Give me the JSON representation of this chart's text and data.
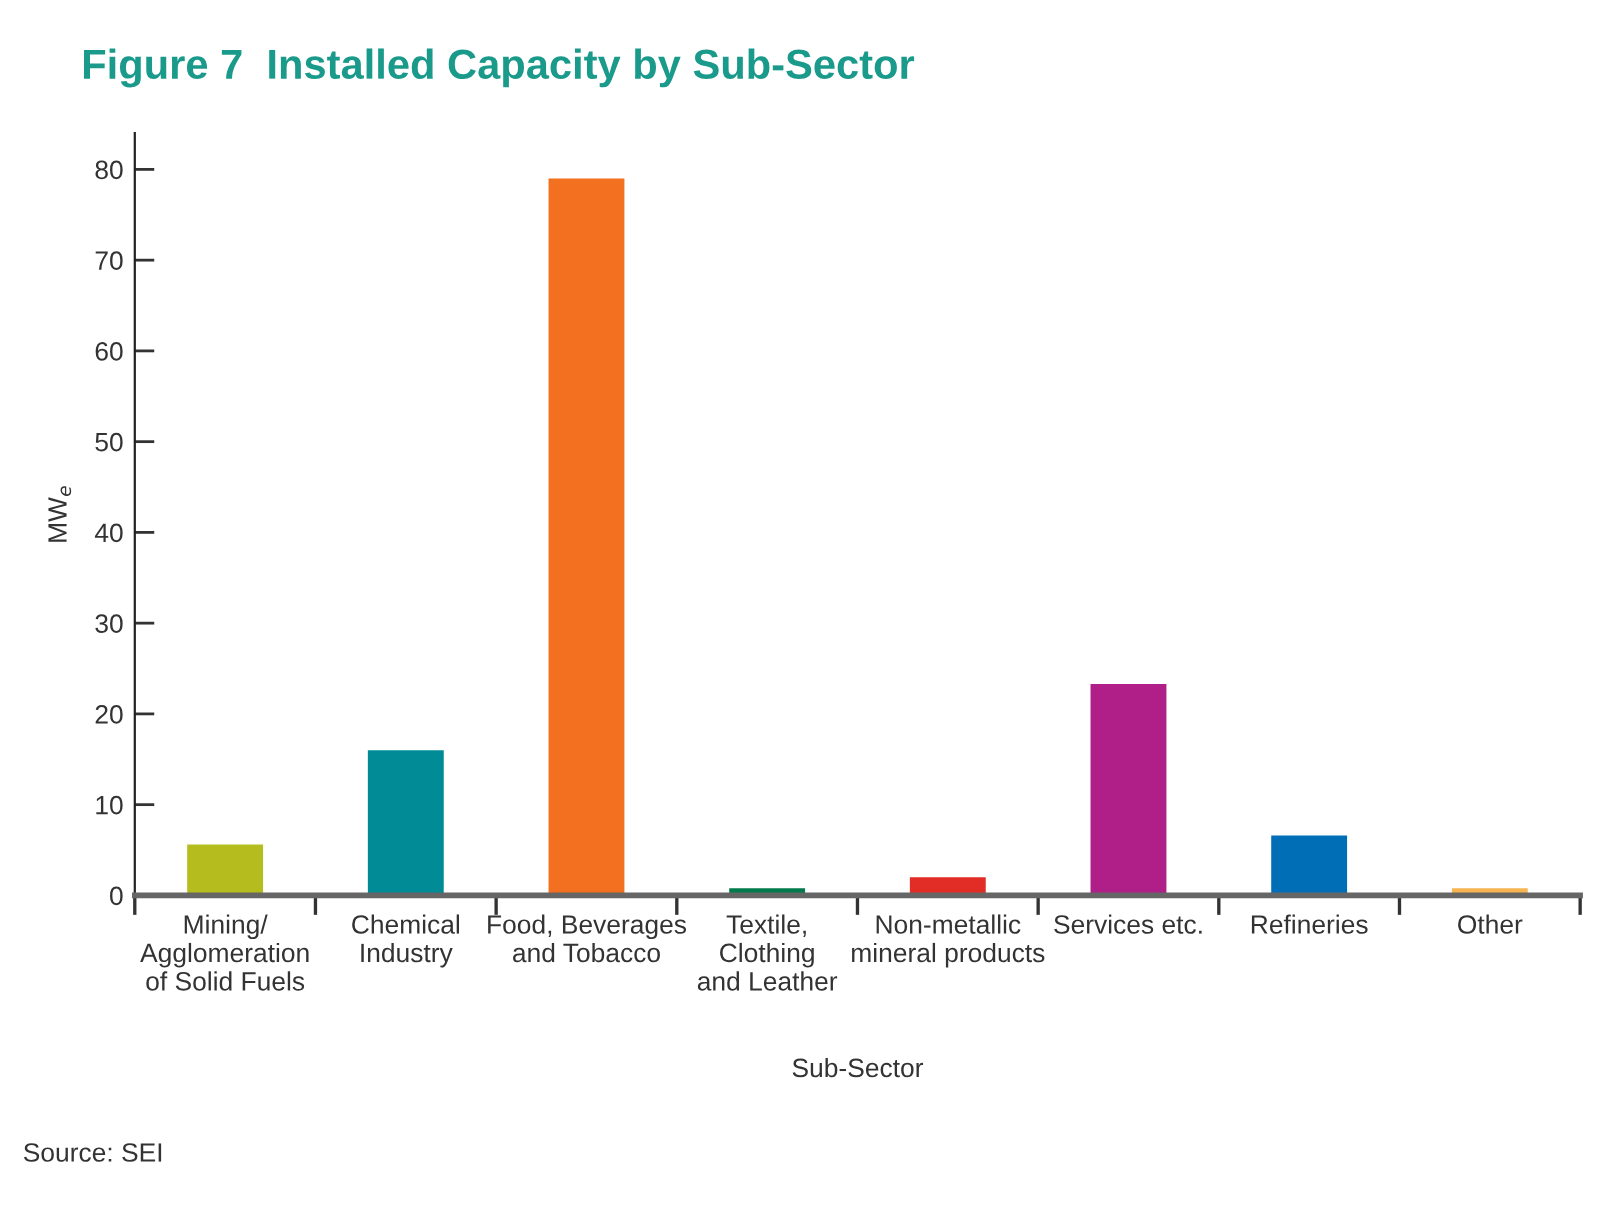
{
  "chart_data": {
    "type": "bar",
    "title": "Figure 7  Installed Capacity by Sub-Sector",
    "categories": [
      "Mining/\nAgglomeration\nof Solid Fuels",
      "Chemical\nIndustry",
      "Food, Beverages\nand Tobacco",
      "Textile,\nClothing\nand Leather",
      "Non-metallic\nmineral products",
      "Services etc.",
      "Refineries",
      "Other"
    ],
    "values": [
      5.6,
      16.0,
      79.0,
      0.8,
      2.0,
      23.3,
      6.6,
      0.8
    ],
    "colors": [
      "#b5bd1e",
      "#008b96",
      "#f37021",
      "#007a4d",
      "#e12d26",
      "#b01f87",
      "#006eb7",
      "#f6b551"
    ],
    "xlabel": "Sub-Sector",
    "ylabel": "MW$_{e}$",
    "ylim": [
      0,
      84
    ],
    "yticks": [
      0,
      10,
      20,
      30,
      40,
      50,
      60,
      70,
      80
    ],
    "grid": false,
    "legend": false,
    "annotations": [
      "Source: SEI"
    ]
  }
}
